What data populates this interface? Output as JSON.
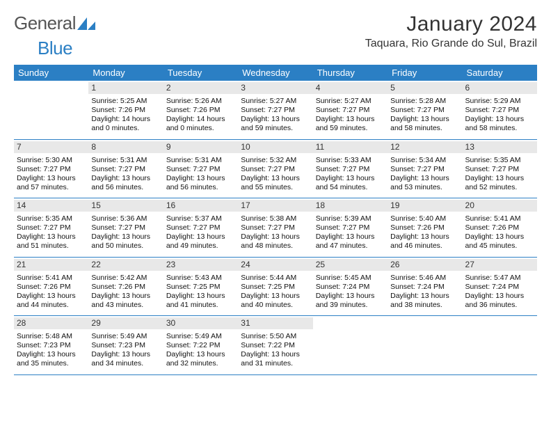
{
  "logo": {
    "text1": "General",
    "text2": "Blue"
  },
  "title": "January 2024",
  "location": "Taquara, Rio Grande do Sul, Brazil",
  "header_bg": "#2b7fc4",
  "dow": [
    "Sunday",
    "Monday",
    "Tuesday",
    "Wednesday",
    "Thursday",
    "Friday",
    "Saturday"
  ],
  "weeks": [
    [
      {
        "n": "",
        "empty": true
      },
      {
        "n": "1",
        "sunrise": "5:25 AM",
        "sunset": "7:26 PM",
        "daylight": "14 hours and 0 minutes."
      },
      {
        "n": "2",
        "sunrise": "5:26 AM",
        "sunset": "7:26 PM",
        "daylight": "14 hours and 0 minutes."
      },
      {
        "n": "3",
        "sunrise": "5:27 AM",
        "sunset": "7:27 PM",
        "daylight": "13 hours and 59 minutes."
      },
      {
        "n": "4",
        "sunrise": "5:27 AM",
        "sunset": "7:27 PM",
        "daylight": "13 hours and 59 minutes."
      },
      {
        "n": "5",
        "sunrise": "5:28 AM",
        "sunset": "7:27 PM",
        "daylight": "13 hours and 58 minutes."
      },
      {
        "n": "6",
        "sunrise": "5:29 AM",
        "sunset": "7:27 PM",
        "daylight": "13 hours and 58 minutes."
      }
    ],
    [
      {
        "n": "7",
        "sunrise": "5:30 AM",
        "sunset": "7:27 PM",
        "daylight": "13 hours and 57 minutes."
      },
      {
        "n": "8",
        "sunrise": "5:31 AM",
        "sunset": "7:27 PM",
        "daylight": "13 hours and 56 minutes."
      },
      {
        "n": "9",
        "sunrise": "5:31 AM",
        "sunset": "7:27 PM",
        "daylight": "13 hours and 56 minutes."
      },
      {
        "n": "10",
        "sunrise": "5:32 AM",
        "sunset": "7:27 PM",
        "daylight": "13 hours and 55 minutes."
      },
      {
        "n": "11",
        "sunrise": "5:33 AM",
        "sunset": "7:27 PM",
        "daylight": "13 hours and 54 minutes."
      },
      {
        "n": "12",
        "sunrise": "5:34 AM",
        "sunset": "7:27 PM",
        "daylight": "13 hours and 53 minutes."
      },
      {
        "n": "13",
        "sunrise": "5:35 AM",
        "sunset": "7:27 PM",
        "daylight": "13 hours and 52 minutes."
      }
    ],
    [
      {
        "n": "14",
        "sunrise": "5:35 AM",
        "sunset": "7:27 PM",
        "daylight": "13 hours and 51 minutes."
      },
      {
        "n": "15",
        "sunrise": "5:36 AM",
        "sunset": "7:27 PM",
        "daylight": "13 hours and 50 minutes."
      },
      {
        "n": "16",
        "sunrise": "5:37 AM",
        "sunset": "7:27 PM",
        "daylight": "13 hours and 49 minutes."
      },
      {
        "n": "17",
        "sunrise": "5:38 AM",
        "sunset": "7:27 PM",
        "daylight": "13 hours and 48 minutes."
      },
      {
        "n": "18",
        "sunrise": "5:39 AM",
        "sunset": "7:27 PM",
        "daylight": "13 hours and 47 minutes."
      },
      {
        "n": "19",
        "sunrise": "5:40 AM",
        "sunset": "7:26 PM",
        "daylight": "13 hours and 46 minutes."
      },
      {
        "n": "20",
        "sunrise": "5:41 AM",
        "sunset": "7:26 PM",
        "daylight": "13 hours and 45 minutes."
      }
    ],
    [
      {
        "n": "21",
        "sunrise": "5:41 AM",
        "sunset": "7:26 PM",
        "daylight": "13 hours and 44 minutes."
      },
      {
        "n": "22",
        "sunrise": "5:42 AM",
        "sunset": "7:26 PM",
        "daylight": "13 hours and 43 minutes."
      },
      {
        "n": "23",
        "sunrise": "5:43 AM",
        "sunset": "7:25 PM",
        "daylight": "13 hours and 41 minutes."
      },
      {
        "n": "24",
        "sunrise": "5:44 AM",
        "sunset": "7:25 PM",
        "daylight": "13 hours and 40 minutes."
      },
      {
        "n": "25",
        "sunrise": "5:45 AM",
        "sunset": "7:24 PM",
        "daylight": "13 hours and 39 minutes."
      },
      {
        "n": "26",
        "sunrise": "5:46 AM",
        "sunset": "7:24 PM",
        "daylight": "13 hours and 38 minutes."
      },
      {
        "n": "27",
        "sunrise": "5:47 AM",
        "sunset": "7:24 PM",
        "daylight": "13 hours and 36 minutes."
      }
    ],
    [
      {
        "n": "28",
        "sunrise": "5:48 AM",
        "sunset": "7:23 PM",
        "daylight": "13 hours and 35 minutes."
      },
      {
        "n": "29",
        "sunrise": "5:49 AM",
        "sunset": "7:23 PM",
        "daylight": "13 hours and 34 minutes."
      },
      {
        "n": "30",
        "sunrise": "5:49 AM",
        "sunset": "7:22 PM",
        "daylight": "13 hours and 32 minutes."
      },
      {
        "n": "31",
        "sunrise": "5:50 AM",
        "sunset": "7:22 PM",
        "daylight": "13 hours and 31 minutes."
      },
      {
        "n": "",
        "empty": true
      },
      {
        "n": "",
        "empty": true
      },
      {
        "n": "",
        "empty": true
      }
    ]
  ],
  "labels": {
    "sunrise": "Sunrise: ",
    "sunset": "Sunset: ",
    "daylight": "Daylight: "
  }
}
